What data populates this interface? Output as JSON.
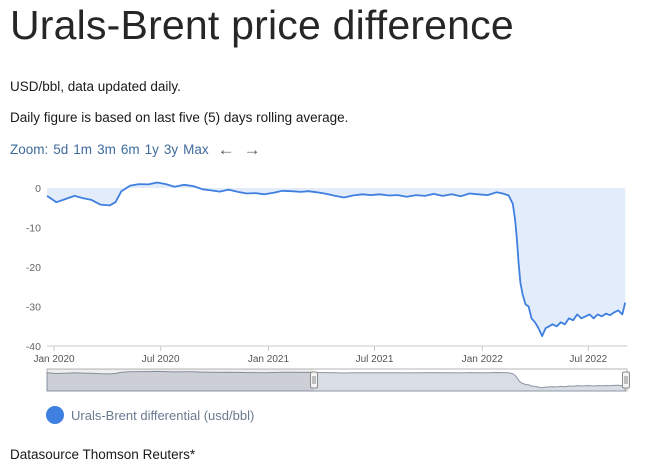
{
  "page": {
    "title": "Urals-Brent price difference",
    "subtitle1": "USD/bbl, data updated daily.",
    "subtitle2": "Daily figure is based on last five (5) days rolling average.",
    "zoom_label": "Zoom:",
    "zoom_options": [
      "5d",
      "1m",
      "3m",
      "6m",
      "1y",
      "3y",
      "Max"
    ],
    "nav_prev": "←",
    "nav_next": "→",
    "source": "Datasource Thomson Reuters*"
  },
  "colors": {
    "line": "#3f7fe0",
    "area": "#e3ecfb",
    "legend_dot": "#3f7fe0"
  },
  "chart_data": {
    "type": "area",
    "title": "",
    "xlabel": "",
    "ylabel": "",
    "ylim": [
      -40,
      0
    ],
    "yticks": [
      0,
      -10,
      -20,
      -30,
      -40
    ],
    "xticks": [
      {
        "date": "2020-01-01",
        "label": "Jan 2020"
      },
      {
        "date": "2020-07-01",
        "label": "Jul 2020"
      },
      {
        "date": "2021-01-01",
        "label": "Jan 2021"
      },
      {
        "date": "2021-07-01",
        "label": "Jul 2021"
      },
      {
        "date": "2022-01-01",
        "label": "Jan 2022"
      },
      {
        "date": "2022-07-01",
        "label": "Jul 2022"
      }
    ],
    "x_range": [
      "2019-12-20",
      "2022-09-05"
    ],
    "grid": false,
    "legend_position": "bottom-left",
    "series": [
      {
        "name": "Urals-Brent differential (usd/bbl)",
        "points": [
          [
            "2019-12-20",
            -2.0
          ],
          [
            "2020-01-05",
            -3.6
          ],
          [
            "2020-01-20",
            -2.8
          ],
          [
            "2020-02-05",
            -2.0
          ],
          [
            "2020-02-20",
            -2.6
          ],
          [
            "2020-03-05",
            -3.0
          ],
          [
            "2020-03-20",
            -4.2
          ],
          [
            "2020-04-05",
            -4.4
          ],
          [
            "2020-04-15",
            -3.6
          ],
          [
            "2020-04-25",
            -0.8
          ],
          [
            "2020-05-10",
            0.6
          ],
          [
            "2020-05-25",
            1.0
          ],
          [
            "2020-06-10",
            0.9
          ],
          [
            "2020-06-25",
            1.4
          ],
          [
            "2020-07-10",
            1.0
          ],
          [
            "2020-07-25",
            0.3
          ],
          [
            "2020-08-10",
            0.8
          ],
          [
            "2020-08-25",
            0.5
          ],
          [
            "2020-09-10",
            -0.3
          ],
          [
            "2020-09-25",
            -0.6
          ],
          [
            "2020-10-10",
            -0.9
          ],
          [
            "2020-10-25",
            -0.4
          ],
          [
            "2020-11-10",
            -1.0
          ],
          [
            "2020-11-25",
            -1.4
          ],
          [
            "2020-12-10",
            -1.3
          ],
          [
            "2020-12-25",
            -1.6
          ],
          [
            "2021-01-10",
            -1.2
          ],
          [
            "2021-01-25",
            -0.7
          ],
          [
            "2021-02-10",
            -0.8
          ],
          [
            "2021-02-25",
            -1.0
          ],
          [
            "2021-03-10",
            -0.8
          ],
          [
            "2021-03-25",
            -1.1
          ],
          [
            "2021-04-10",
            -1.5
          ],
          [
            "2021-04-25",
            -2.0
          ],
          [
            "2021-05-10",
            -2.4
          ],
          [
            "2021-05-25",
            -1.9
          ],
          [
            "2021-06-10",
            -1.6
          ],
          [
            "2021-06-25",
            -1.8
          ],
          [
            "2021-07-10",
            -1.6
          ],
          [
            "2021-07-25",
            -1.9
          ],
          [
            "2021-08-10",
            -1.8
          ],
          [
            "2021-08-25",
            -2.2
          ],
          [
            "2021-09-10",
            -1.8
          ],
          [
            "2021-09-25",
            -2.0
          ],
          [
            "2021-10-10",
            -1.5
          ],
          [
            "2021-10-25",
            -2.0
          ],
          [
            "2021-11-10",
            -1.6
          ],
          [
            "2021-11-25",
            -2.1
          ],
          [
            "2021-12-10",
            -1.4
          ],
          [
            "2021-12-25",
            -1.6
          ],
          [
            "2022-01-10",
            -1.8
          ],
          [
            "2022-01-25",
            -1.1
          ],
          [
            "2022-02-05",
            -1.4
          ],
          [
            "2022-02-15",
            -1.9
          ],
          [
            "2022-02-22",
            -4.0
          ],
          [
            "2022-02-26",
            -8.0
          ],
          [
            "2022-03-01",
            -13.0
          ],
          [
            "2022-03-04",
            -19.0
          ],
          [
            "2022-03-07",
            -24.0
          ],
          [
            "2022-03-11",
            -27.0
          ],
          [
            "2022-03-16",
            -29.5
          ],
          [
            "2022-03-21",
            -30.0
          ],
          [
            "2022-03-26",
            -33.0
          ],
          [
            "2022-04-01",
            -34.0
          ],
          [
            "2022-04-07",
            -35.5
          ],
          [
            "2022-04-13",
            -37.5
          ],
          [
            "2022-04-19",
            -35.5
          ],
          [
            "2022-04-25",
            -35.0
          ],
          [
            "2022-05-01",
            -34.5
          ],
          [
            "2022-05-08",
            -35.0
          ],
          [
            "2022-05-15",
            -34.0
          ],
          [
            "2022-05-22",
            -34.5
          ],
          [
            "2022-05-29",
            -33.0
          ],
          [
            "2022-06-05",
            -33.5
          ],
          [
            "2022-06-12",
            -32.0
          ],
          [
            "2022-06-19",
            -33.0
          ],
          [
            "2022-06-26",
            -32.5
          ],
          [
            "2022-07-03",
            -32.0
          ],
          [
            "2022-07-10",
            -33.0
          ],
          [
            "2022-07-17",
            -32.0
          ],
          [
            "2022-07-24",
            -32.5
          ],
          [
            "2022-07-31",
            -31.8
          ],
          [
            "2022-08-07",
            -32.2
          ],
          [
            "2022-08-14",
            -31.5
          ],
          [
            "2022-08-21",
            -31.0
          ],
          [
            "2022-08-28",
            -32.0
          ],
          [
            "2022-09-02",
            -29.0
          ]
        ]
      }
    ]
  }
}
